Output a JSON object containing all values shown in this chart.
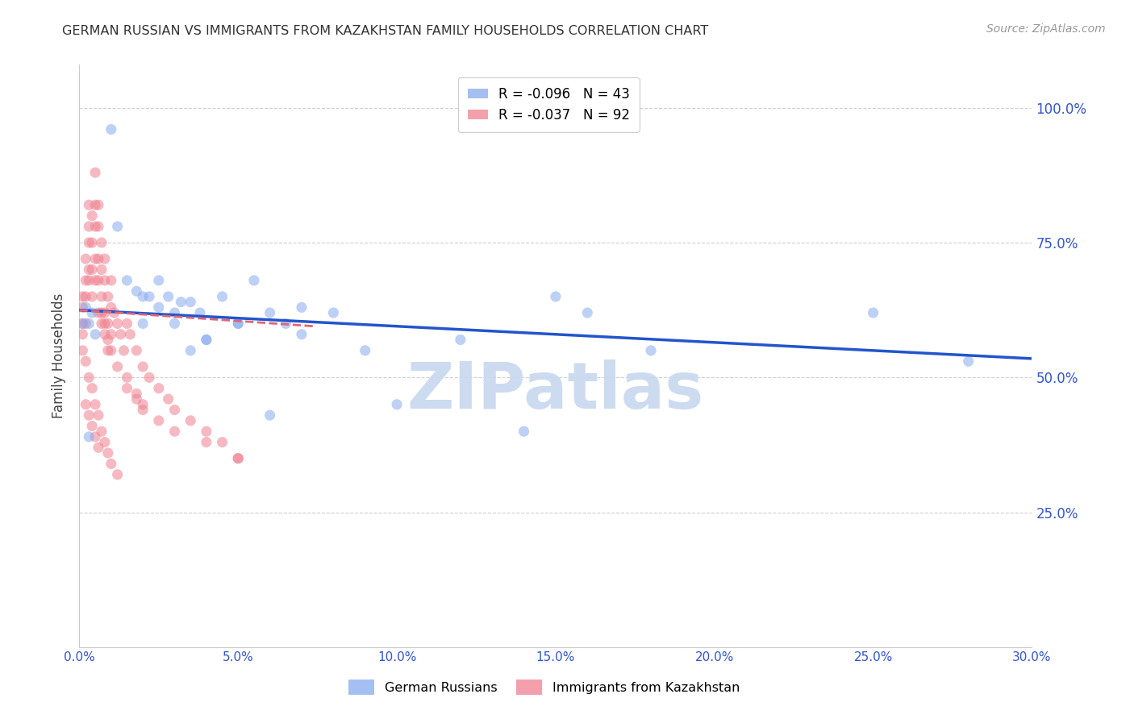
{
  "title": "GERMAN RUSSIAN VS IMMIGRANTS FROM KAZAKHSTAN FAMILY HOUSEHOLDS CORRELATION CHART",
  "source_text": "Source: ZipAtlas.com",
  "ylabel": "Family Households",
  "xlim": [
    0.0,
    0.3
  ],
  "ylim": [
    0.0,
    1.08
  ],
  "xtick_labels": [
    "0.0%",
    "5.0%",
    "10.0%",
    "15.0%",
    "20.0%",
    "25.0%",
    "30.0%"
  ],
  "xtick_vals": [
    0.0,
    0.05,
    0.1,
    0.15,
    0.2,
    0.25,
    0.3
  ],
  "ytick_labels": [
    "25.0%",
    "50.0%",
    "75.0%",
    "100.0%"
  ],
  "ytick_vals": [
    0.25,
    0.5,
    0.75,
    1.0
  ],
  "watermark": "ZIPatlas",
  "watermark_color": "#c8d8f0",
  "blue_scatter_x": [
    0.001,
    0.002,
    0.003,
    0.004,
    0.005,
    0.01,
    0.012,
    0.015,
    0.018,
    0.02,
    0.022,
    0.025,
    0.028,
    0.03,
    0.032,
    0.035,
    0.038,
    0.04,
    0.045,
    0.05,
    0.055,
    0.06,
    0.065,
    0.07,
    0.08,
    0.09,
    0.1,
    0.12,
    0.14,
    0.16,
    0.18,
    0.25,
    0.28,
    0.02,
    0.025,
    0.03,
    0.035,
    0.04,
    0.05,
    0.06,
    0.07,
    0.15,
    0.003
  ],
  "blue_scatter_y": [
    0.6,
    0.63,
    0.6,
    0.62,
    0.58,
    0.96,
    0.78,
    0.68,
    0.66,
    0.65,
    0.65,
    0.68,
    0.65,
    0.62,
    0.64,
    0.64,
    0.62,
    0.57,
    0.65,
    0.6,
    0.68,
    0.62,
    0.6,
    0.63,
    0.62,
    0.55,
    0.45,
    0.57,
    0.4,
    0.62,
    0.55,
    0.62,
    0.53,
    0.6,
    0.63,
    0.6,
    0.55,
    0.57,
    0.6,
    0.43,
    0.58,
    0.65,
    0.39
  ],
  "pink_scatter_x": [
    0.001,
    0.001,
    0.001,
    0.001,
    0.002,
    0.002,
    0.002,
    0.002,
    0.003,
    0.003,
    0.003,
    0.003,
    0.003,
    0.004,
    0.004,
    0.004,
    0.004,
    0.005,
    0.005,
    0.005,
    0.005,
    0.005,
    0.006,
    0.006,
    0.006,
    0.006,
    0.006,
    0.007,
    0.007,
    0.007,
    0.007,
    0.008,
    0.008,
    0.008,
    0.008,
    0.009,
    0.009,
    0.009,
    0.01,
    0.01,
    0.01,
    0.011,
    0.012,
    0.013,
    0.014,
    0.015,
    0.016,
    0.018,
    0.02,
    0.022,
    0.025,
    0.028,
    0.03,
    0.035,
    0.04,
    0.045,
    0.05,
    0.001,
    0.002,
    0.003,
    0.004,
    0.005,
    0.006,
    0.007,
    0.008,
    0.009,
    0.01,
    0.012,
    0.015,
    0.018,
    0.02,
    0.002,
    0.003,
    0.004,
    0.005,
    0.006,
    0.007,
    0.008,
    0.009,
    0.01,
    0.012,
    0.015,
    0.018,
    0.02,
    0.025,
    0.03,
    0.04,
    0.05
  ],
  "pink_scatter_y": [
    0.65,
    0.63,
    0.6,
    0.58,
    0.68,
    0.72,
    0.65,
    0.6,
    0.78,
    0.82,
    0.75,
    0.7,
    0.68,
    0.8,
    0.75,
    0.7,
    0.65,
    0.88,
    0.82,
    0.78,
    0.72,
    0.68,
    0.82,
    0.78,
    0.72,
    0.68,
    0.62,
    0.75,
    0.7,
    0.65,
    0.6,
    0.72,
    0.68,
    0.62,
    0.58,
    0.65,
    0.6,
    0.55,
    0.68,
    0.63,
    0.58,
    0.62,
    0.6,
    0.58,
    0.55,
    0.6,
    0.58,
    0.55,
    0.52,
    0.5,
    0.48,
    0.46,
    0.44,
    0.42,
    0.4,
    0.38,
    0.35,
    0.55,
    0.53,
    0.5,
    0.48,
    0.45,
    0.43,
    0.4,
    0.38,
    0.36,
    0.34,
    0.32,
    0.48,
    0.46,
    0.44,
    0.45,
    0.43,
    0.41,
    0.39,
    0.37,
    0.62,
    0.6,
    0.57,
    0.55,
    0.52,
    0.5,
    0.47,
    0.45,
    0.42,
    0.4,
    0.38,
    0.35
  ],
  "blue_line_x": [
    0.0,
    0.3
  ],
  "blue_line_y": [
    0.625,
    0.535
  ],
  "pink_line_x": [
    0.0,
    0.074
  ],
  "pink_line_y": [
    0.625,
    0.595
  ],
  "blue_line_color": "#2255cc",
  "pink_line_color": "#dd6677",
  "grid_color": "#d0d0d0",
  "title_color": "#333333",
  "right_axis_color": "#3355cc",
  "tick_color": "#3355cc",
  "scatter_alpha": 0.55,
  "scatter_size": 90,
  "blue_scatter_color": "#88aaee",
  "pink_scatter_color": "#f08090"
}
